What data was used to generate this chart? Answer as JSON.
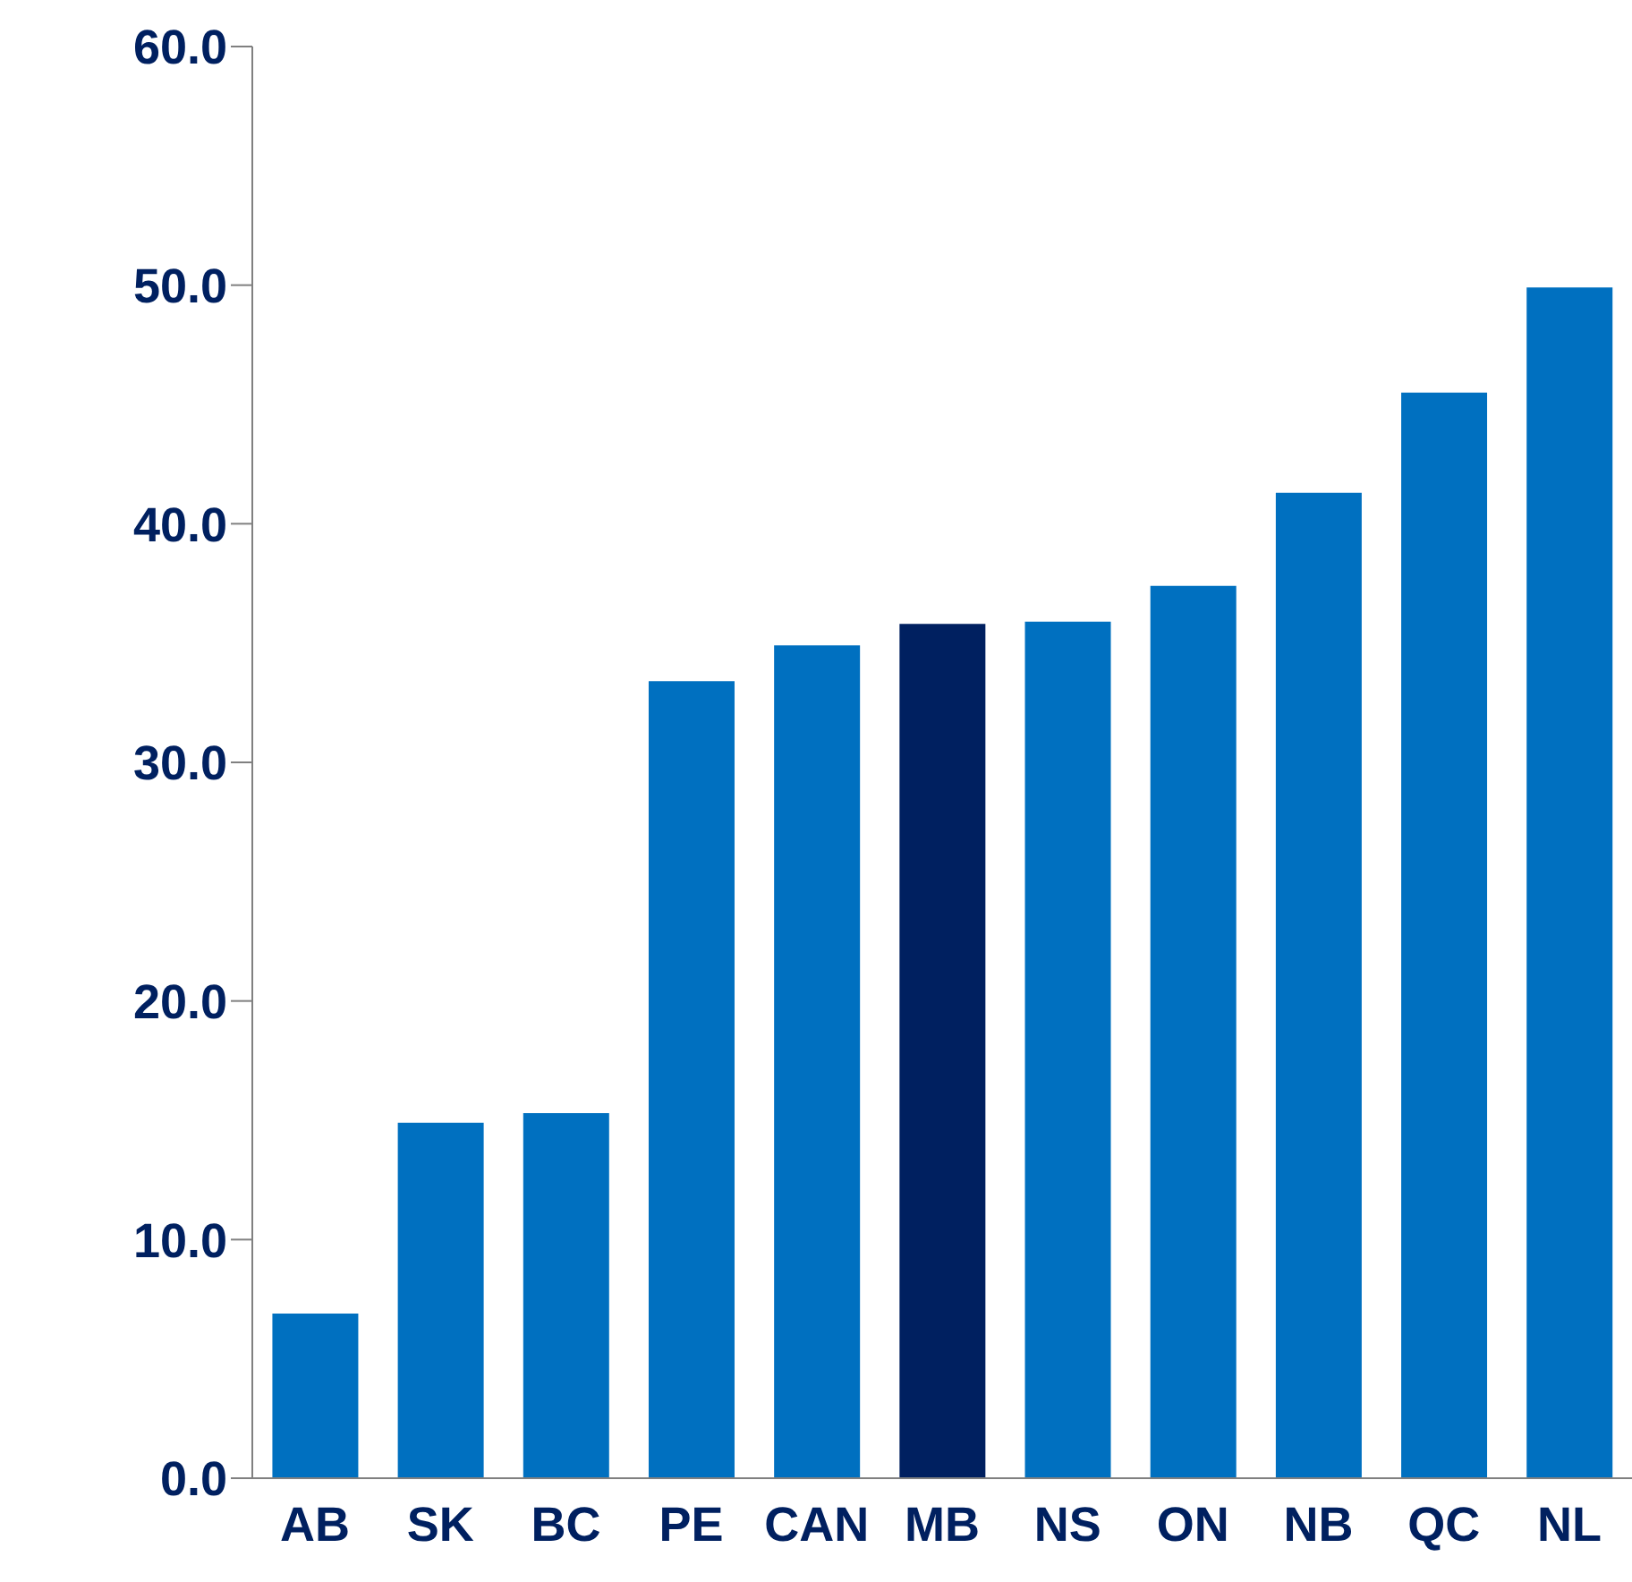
{
  "chart_data": {
    "type": "bar",
    "categories": [
      "AB",
      "SK",
      "BC",
      "PE",
      "CAN",
      "MB",
      "NS",
      "ON",
      "NB",
      "QC",
      "NL"
    ],
    "values": [
      6.9,
      14.9,
      15.3,
      33.4,
      34.9,
      35.8,
      35.9,
      37.4,
      41.3,
      45.5,
      49.9
    ],
    "colors": [
      "#0070c0",
      "#0070c0",
      "#0070c0",
      "#0070c0",
      "#0070c0",
      "#002060",
      "#0070c0",
      "#0070c0",
      "#0070c0",
      "#0070c0",
      "#0070c0"
    ],
    "ylim": [
      0,
      60
    ],
    "yticks": [
      {
        "value": 0,
        "label": "0.0"
      },
      {
        "value": 10,
        "label": "10.0"
      },
      {
        "value": 20,
        "label": "20.0"
      },
      {
        "value": 30,
        "label": "30.0"
      },
      {
        "value": 40,
        "label": "40.0"
      },
      {
        "value": 50,
        "label": "50.0"
      },
      {
        "value": 60,
        "label": "60.0"
      }
    ],
    "grid": false,
    "legend": false
  }
}
